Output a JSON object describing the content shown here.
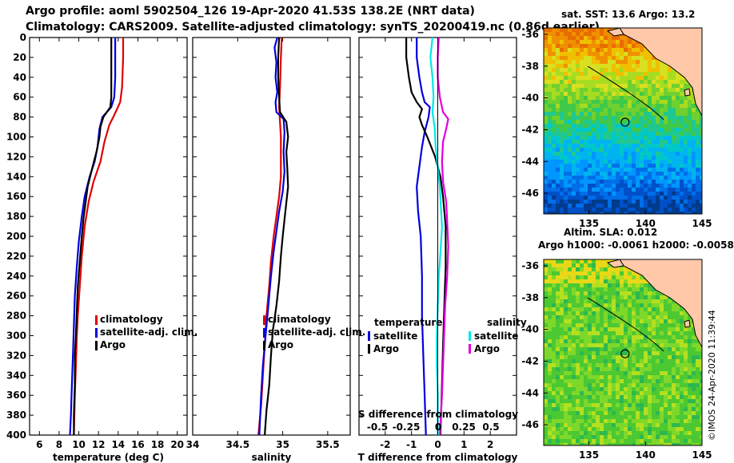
{
  "header": {
    "title_line1": "Argo profile: aoml 5902504_126 19-Apr-2020 41.53S 138.2E (NRT data)",
    "title_line2": "Climatology: CARS2009. Satellite-adjusted climatology: synTS_20200419.nc (0.86d earlier)"
  },
  "colors": {
    "climatology": "#e00000",
    "satellite": "#0000dd",
    "argo": "#000000",
    "salinity_satellite": "#00e8e8",
    "salinity_argo": "#e000e0"
  },
  "depth_axis": {
    "ticks": [
      0,
      20,
      40,
      60,
      80,
      100,
      120,
      140,
      160,
      180,
      200,
      220,
      240,
      260,
      280,
      300,
      320,
      340,
      360,
      380,
      400
    ],
    "range": [
      0,
      400
    ]
  },
  "chart_data": [
    {
      "type": "line",
      "id": "temperature",
      "xlabel": "temperature (deg C)",
      "xlim": [
        5,
        21
      ],
      "ylim": [
        0,
        400
      ],
      "xticks": [
        6,
        8,
        10,
        12,
        14,
        16,
        18,
        20
      ],
      "legend": [
        "climatology",
        "satellite-adj. clim.",
        "Argo"
      ],
      "series": [
        {
          "name": "climatology",
          "color": "#e00000",
          "points": [
            [
              14.5,
              0
            ],
            [
              14.5,
              20
            ],
            [
              14.4,
              50
            ],
            [
              14.2,
              65
            ],
            [
              13.6,
              78
            ],
            [
              13.1,
              88
            ],
            [
              12.6,
              105
            ],
            [
              12.2,
              125
            ],
            [
              11.5,
              145
            ],
            [
              11,
              165
            ],
            [
              10.6,
              190
            ],
            [
              10.3,
              220
            ],
            [
              10.1,
              250
            ],
            [
              9.9,
              280
            ],
            [
              9.8,
              300
            ],
            [
              9.7,
              330
            ],
            [
              9.6,
              360
            ],
            [
              9.5,
              400
            ]
          ]
        },
        {
          "name": "satellite-adj. clim.",
          "color": "#0000dd",
          "points": [
            [
              13.7,
              0
            ],
            [
              13.7,
              20
            ],
            [
              13.7,
              40
            ],
            [
              13.6,
              60
            ],
            [
              13.3,
              70
            ],
            [
              12.4,
              80
            ],
            [
              12.1,
              92
            ],
            [
              11.9,
              110
            ],
            [
              11.6,
              125
            ],
            [
              11.1,
              140
            ],
            [
              10.6,
              160
            ],
            [
              10.3,
              180
            ],
            [
              10,
              205
            ],
            [
              9.8,
              230
            ],
            [
              9.6,
              260
            ],
            [
              9.5,
              290
            ],
            [
              9.4,
              320
            ],
            [
              9.3,
              350
            ],
            [
              9.2,
              380
            ],
            [
              9.1,
              400
            ]
          ]
        },
        {
          "name": "Argo",
          "color": "#000000",
          "points": [
            [
              13.3,
              0
            ],
            [
              13.3,
              20
            ],
            [
              13.3,
              40
            ],
            [
              13.3,
              60
            ],
            [
              13.2,
              70
            ],
            [
              12.5,
              80
            ],
            [
              12.2,
              90
            ],
            [
              12.1,
              100
            ],
            [
              11.8,
              115
            ],
            [
              11.4,
              130
            ],
            [
              10.9,
              150
            ],
            [
              10.7,
              165
            ],
            [
              10.5,
              180
            ],
            [
              10.3,
              200
            ],
            [
              10.1,
              225
            ],
            [
              9.9,
              250
            ],
            [
              9.8,
              275
            ],
            [
              9.7,
              300
            ],
            [
              9.6,
              320
            ],
            [
              9.6,
              350
            ],
            [
              9.5,
              380
            ],
            [
              9.5,
              400
            ]
          ]
        }
      ]
    },
    {
      "type": "line",
      "id": "salinity",
      "xlabel": "salinity",
      "xlim": [
        34,
        35.75
      ],
      "ylim": [
        0,
        400
      ],
      "xticks": [
        34,
        34.5,
        35,
        35.5
      ],
      "legend": [
        "climatology",
        "satellite-adj. clim.",
        "Argo"
      ],
      "series": [
        {
          "name": "climatology",
          "color": "#e00000",
          "points": [
            [
              34.99,
              0
            ],
            [
              34.98,
              20
            ],
            [
              34.97,
              50
            ],
            [
              34.96,
              70
            ],
            [
              34.97,
              85
            ],
            [
              34.98,
              100
            ],
            [
              34.98,
              120
            ],
            [
              34.98,
              140
            ],
            [
              34.96,
              160
            ],
            [
              34.93,
              180
            ],
            [
              34.9,
              200
            ],
            [
              34.87,
              225
            ],
            [
              34.85,
              250
            ],
            [
              34.82,
              280
            ],
            [
              34.8,
              310
            ],
            [
              34.78,
              340
            ],
            [
              34.76,
              370
            ],
            [
              34.73,
              400
            ]
          ]
        },
        {
          "name": "satellite-adj. clim.",
          "color": "#0000dd",
          "points": [
            [
              34.94,
              0
            ],
            [
              34.91,
              10
            ],
            [
              34.93,
              25
            ],
            [
              34.92,
              40
            ],
            [
              34.94,
              55
            ],
            [
              34.92,
              65
            ],
            [
              34.93,
              75
            ],
            [
              35.01,
              82
            ],
            [
              35.02,
              95
            ],
            [
              35.01,
              115
            ],
            [
              35.02,
              135
            ],
            [
              35.0,
              155
            ],
            [
              34.96,
              175
            ],
            [
              34.93,
              195
            ],
            [
              34.9,
              215
            ],
            [
              34.87,
              240
            ],
            [
              34.84,
              270
            ],
            [
              34.81,
              300
            ],
            [
              34.78,
              330
            ],
            [
              34.76,
              360
            ],
            [
              34.74,
              400
            ]
          ]
        },
        {
          "name": "Argo",
          "color": "#000000",
          "points": [
            [
              34.96,
              0
            ],
            [
              34.95,
              20
            ],
            [
              34.95,
              40
            ],
            [
              34.96,
              60
            ],
            [
              34.97,
              75
            ],
            [
              35.04,
              85
            ],
            [
              35.06,
              100
            ],
            [
              35.04,
              115
            ],
            [
              35.05,
              130
            ],
            [
              35.06,
              150
            ],
            [
              35.03,
              175
            ],
            [
              35.0,
              200
            ],
            [
              34.98,
              220
            ],
            [
              34.96,
              245
            ],
            [
              34.93,
              270
            ],
            [
              34.89,
              295
            ],
            [
              34.87,
              320
            ],
            [
              34.85,
              350
            ],
            [
              34.82,
              375
            ],
            [
              34.8,
              400
            ]
          ]
        }
      ]
    },
    {
      "type": "line",
      "id": "difference",
      "xlabel": "T difference from climatology",
      "xlim": [
        -3,
        3
      ],
      "ylim": [
        0,
        400
      ],
      "xticks": [
        -2,
        -1,
        0,
        1,
        2
      ],
      "top_xlabel": "S difference from climatology",
      "top_xlim": [
        -0.75,
        0.75
      ],
      "top_xticks": [
        "-0.5",
        "-0.25",
        "0",
        "0.25",
        "0.5"
      ],
      "legend_temperature_title": "temperature",
      "legend_salinity_title": "salinity",
      "legend": [
        "satellite",
        "Argo"
      ],
      "series": [
        {
          "name": "temperature satellite",
          "color": "#0000dd",
          "points": [
            [
              -0.8,
              0
            ],
            [
              -0.8,
              20
            ],
            [
              -0.7,
              40
            ],
            [
              -0.6,
              55
            ],
            [
              -0.5,
              65
            ],
            [
              -0.3,
              70
            ],
            [
              -0.35,
              80
            ],
            [
              -0.5,
              95
            ],
            [
              -0.6,
              110
            ],
            [
              -0.7,
              130
            ],
            [
              -0.8,
              150
            ],
            [
              -0.75,
              175
            ],
            [
              -0.65,
              200
            ],
            [
              -0.6,
              240
            ],
            [
              -0.6,
              280
            ],
            [
              -0.55,
              320
            ],
            [
              -0.5,
              360
            ],
            [
              -0.45,
              400
            ]
          ]
        },
        {
          "name": "temperature Argo",
          "color": "#000000",
          "points": [
            [
              -1.2,
              0
            ],
            [
              -1.2,
              20
            ],
            [
              -1.1,
              40
            ],
            [
              -1.0,
              55
            ],
            [
              -0.8,
              65
            ],
            [
              -0.6,
              72
            ],
            [
              -0.7,
              80
            ],
            [
              -0.6,
              88
            ],
            [
              -0.4,
              100
            ],
            [
              -0.1,
              120
            ],
            [
              0.1,
              140
            ],
            [
              0.2,
              160
            ],
            [
              0.3,
              190
            ],
            [
              0.3,
              230
            ],
            [
              0.25,
              270
            ],
            [
              0.2,
              310
            ],
            [
              0.15,
              360
            ],
            [
              0.1,
              400
            ]
          ]
        },
        {
          "name": "salinity satellite",
          "color": "#00e8e8",
          "points": [
            [
              -0.05,
              0
            ],
            [
              -0.07,
              20
            ],
            [
              -0.05,
              40
            ],
            [
              -0.04,
              60
            ],
            [
              -0.05,
              75
            ],
            [
              -0.03,
              90
            ],
            [
              -0.02,
              110
            ],
            [
              0.0,
              130
            ],
            [
              0.02,
              150
            ],
            [
              0.03,
              170
            ],
            [
              0.04,
              190
            ],
            [
              0.03,
              210
            ],
            [
              0.01,
              240
            ],
            [
              0.0,
              270
            ],
            [
              -0.01,
              300
            ],
            [
              -0.01,
              330
            ],
            [
              0.0,
              360
            ],
            [
              0.0,
              400
            ]
          ]
        },
        {
          "name": "salinity Argo",
          "color": "#e000e0",
          "points": [
            [
              0.01,
              0
            ],
            [
              0.0,
              20
            ],
            [
              0.0,
              40
            ],
            [
              0.02,
              60
            ],
            [
              0.05,
              75
            ],
            [
              0.1,
              82
            ],
            [
              0.08,
              92
            ],
            [
              0.05,
              105
            ],
            [
              0.04,
              125
            ],
            [
              0.05,
              145
            ],
            [
              0.08,
              165
            ],
            [
              0.09,
              185
            ],
            [
              0.1,
              210
            ],
            [
              0.09,
              240
            ],
            [
              0.07,
              270
            ],
            [
              0.06,
              300
            ],
            [
              0.05,
              330
            ],
            [
              0.04,
              360
            ],
            [
              0.02,
              400
            ]
          ]
        }
      ]
    }
  ],
  "map_top": {
    "title": "sat. SST: 13.6 Argo: 13.2",
    "lat_ticks": [
      "-36",
      "-38",
      "-40",
      "-42",
      "-44",
      "-46"
    ],
    "lon_ticks": [
      "135",
      "140",
      "145"
    ],
    "lon_range": [
      131,
      145
    ],
    "lat_range": [
      -47.3,
      -35.6
    ],
    "argo_position": {
      "lon": 138.2,
      "lat": -41.53
    }
  },
  "map_bottom": {
    "title_line1": "Altim. SLA: 0.012",
    "title_line2": "Argo h1000: -0.0061 h2000: -0.0058",
    "lat_ticks": [
      "-36",
      "-38",
      "-40",
      "-42",
      "-44",
      "-46"
    ],
    "lon_ticks": [
      "135",
      "140",
      "145"
    ],
    "lon_range": [
      131,
      145
    ],
    "lat_range": [
      -47.3,
      -35.6
    ],
    "argo_position": {
      "lon": 138.2,
      "lat": -41.53
    }
  },
  "credit": "©IMOS 24-Apr-2020 11:39:44"
}
